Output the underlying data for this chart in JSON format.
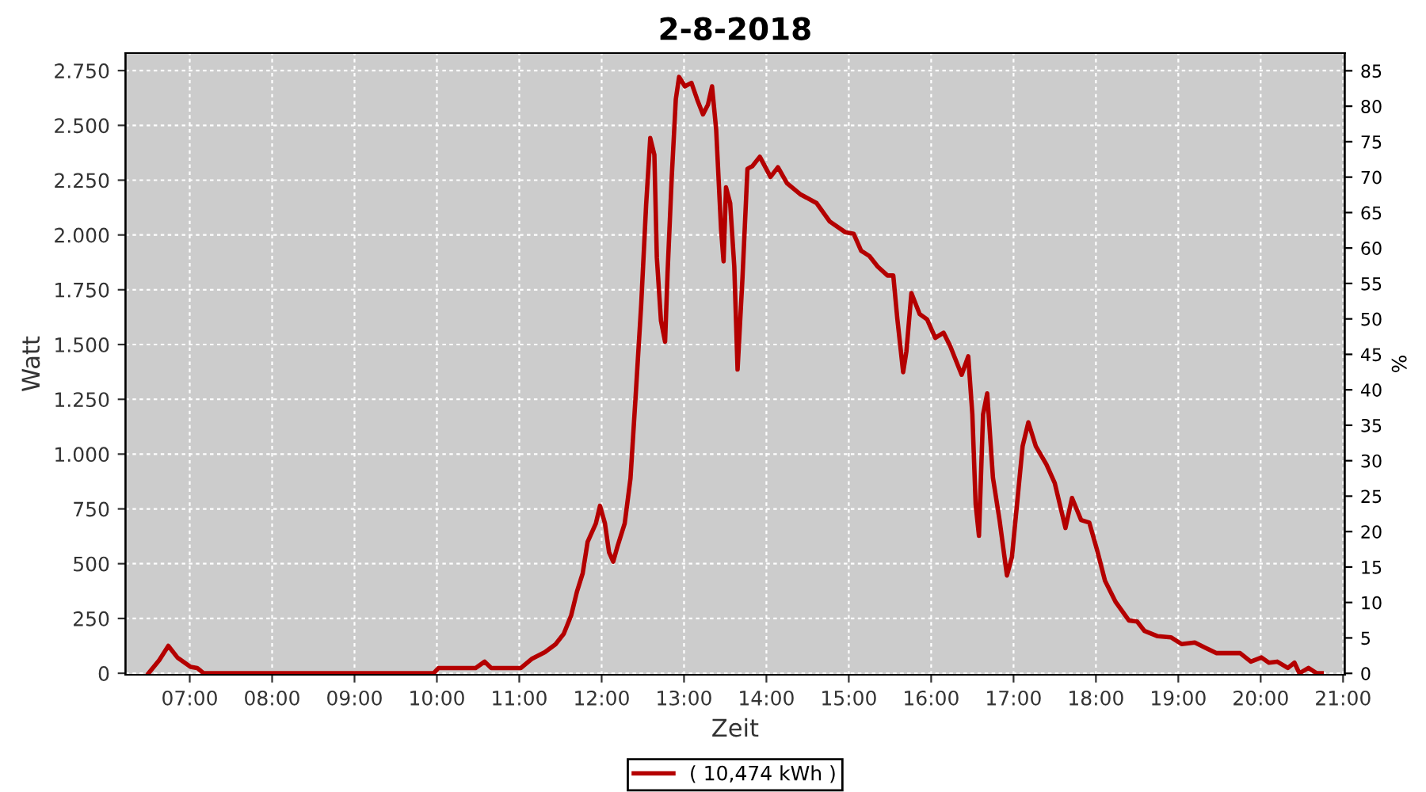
{
  "chart_data": {
    "type": "line",
    "title": "2-8-2018",
    "xlabel": "Zeit",
    "ylabel": "Watt",
    "y2label": "%",
    "xlim": [
      6.22,
      21.02
    ],
    "ylim": [
      -7,
      2830
    ],
    "y2lim": [
      -0.2,
      87.5
    ],
    "xticks": [
      {
        "value": 7,
        "label": "07:00"
      },
      {
        "value": 8,
        "label": "08:00"
      },
      {
        "value": 9,
        "label": "09:00"
      },
      {
        "value": 10,
        "label": "10:00"
      },
      {
        "value": 11,
        "label": "11:00"
      },
      {
        "value": 12,
        "label": "12:00"
      },
      {
        "value": 13,
        "label": "13:00"
      },
      {
        "value": 14,
        "label": "14:00"
      },
      {
        "value": 15,
        "label": "15:00"
      },
      {
        "value": 16,
        "label": "16:00"
      },
      {
        "value": 17,
        "label": "17:00"
      },
      {
        "value": 18,
        "label": "18:00"
      },
      {
        "value": 19,
        "label": "19:00"
      },
      {
        "value": 20,
        "label": "20:00"
      },
      {
        "value": 21,
        "label": "21:00"
      }
    ],
    "yticks": [
      0,
      250,
      500,
      750,
      {
        "value": 1000,
        "label": "1.000"
      },
      {
        "value": 1250,
        "label": "1.250"
      },
      {
        "value": 1500,
        "label": "1.500"
      },
      {
        "value": 1750,
        "label": "1.750"
      },
      {
        "value": 2000,
        "label": "2.000"
      },
      {
        "value": 2250,
        "label": "2.250"
      },
      {
        "value": 2500,
        "label": "2.500"
      },
      {
        "value": 2750,
        "label": "2.750"
      }
    ],
    "y2ticks": [
      0,
      5,
      10,
      15,
      20,
      25,
      30,
      35,
      40,
      45,
      50,
      55,
      60,
      65,
      70,
      75,
      80,
      85
    ],
    "grid": true,
    "legend": "bottom",
    "marker": "none",
    "line_style": "solid",
    "series": [
      {
        "name": "( 10,474 kWh )",
        "color": "#b40000",
        "x": [
          6.5,
          6.63,
          6.74,
          6.85,
          7.01,
          7.09,
          7.17,
          9.96,
          10.02,
          10.15,
          10.34,
          10.47,
          10.58,
          10.66,
          10.92,
          11.02,
          11.15,
          11.31,
          11.44,
          11.54,
          11.63,
          11.7,
          11.77,
          11.83,
          11.93,
          11.98,
          12.04,
          12.09,
          12.14,
          12.19,
          12.28,
          12.35,
          12.41,
          12.48,
          12.54,
          12.59,
          12.64,
          12.67,
          12.72,
          12.77,
          12.8,
          12.85,
          12.9,
          12.94,
          13.01,
          13.09,
          13.16,
          13.23,
          13.29,
          13.34,
          13.39,
          13.45,
          13.48,
          13.51,
          13.56,
          13.61,
          13.65,
          13.71,
          13.77,
          13.83,
          13.92,
          14.05,
          14.14,
          14.25,
          14.41,
          14.61,
          14.77,
          14.96,
          15.06,
          15.15,
          15.25,
          15.35,
          15.47,
          15.54,
          15.59,
          15.66,
          15.7,
          15.76,
          15.86,
          15.95,
          16.05,
          16.15,
          16.23,
          16.37,
          16.45,
          16.5,
          16.54,
          16.58,
          16.63,
          16.68,
          16.75,
          16.83,
          16.92,
          16.98,
          17.11,
          17.18,
          17.27,
          17.4,
          17.5,
          17.63,
          17.71,
          17.82,
          17.92,
          18.02,
          18.11,
          18.24,
          18.4,
          18.5,
          18.59,
          18.75,
          18.91,
          19.04,
          19.2,
          19.33,
          19.46,
          19.75,
          19.88,
          20.01,
          20.1,
          20.2,
          20.33,
          20.41,
          20.47,
          20.58,
          20.68,
          20.74
        ],
        "values": [
          0,
          60,
          125,
          72,
          29,
          24,
          0,
          0,
          24,
          24,
          24,
          24,
          53,
          24,
          24,
          24,
          65,
          96,
          132,
          180,
          264,
          372,
          456,
          600,
          684,
          764,
          684,
          552,
          509,
          576,
          684,
          889,
          1249,
          1681,
          2137,
          2442,
          2366,
          1897,
          1609,
          1513,
          1825,
          2257,
          2618,
          2721,
          2678,
          2694,
          2618,
          2550,
          2594,
          2678,
          2482,
          2024,
          1880,
          2217,
          2145,
          1856,
          1386,
          1808,
          2302,
          2314,
          2357,
          2265,
          2309,
          2236,
          2186,
          2145,
          2061,
          2012,
          2005,
          1928,
          1904,
          1856,
          1815,
          1815,
          1615,
          1374,
          1470,
          1735,
          1639,
          1615,
          1530,
          1554,
          1494,
          1362,
          1446,
          1181,
          771,
          627,
          1181,
          1277,
          892,
          699,
          446,
          530,
          1036,
          1145,
          1036,
          952,
          868,
          663,
          800,
          699,
          687,
          554,
          422,
          325,
          241,
          236,
          193,
          169,
          164,
          133,
          140,
          116,
          92,
          92,
          53,
          72,
          48,
          53,
          24,
          48,
          0,
          24,
          0,
          0
        ]
      }
    ]
  }
}
